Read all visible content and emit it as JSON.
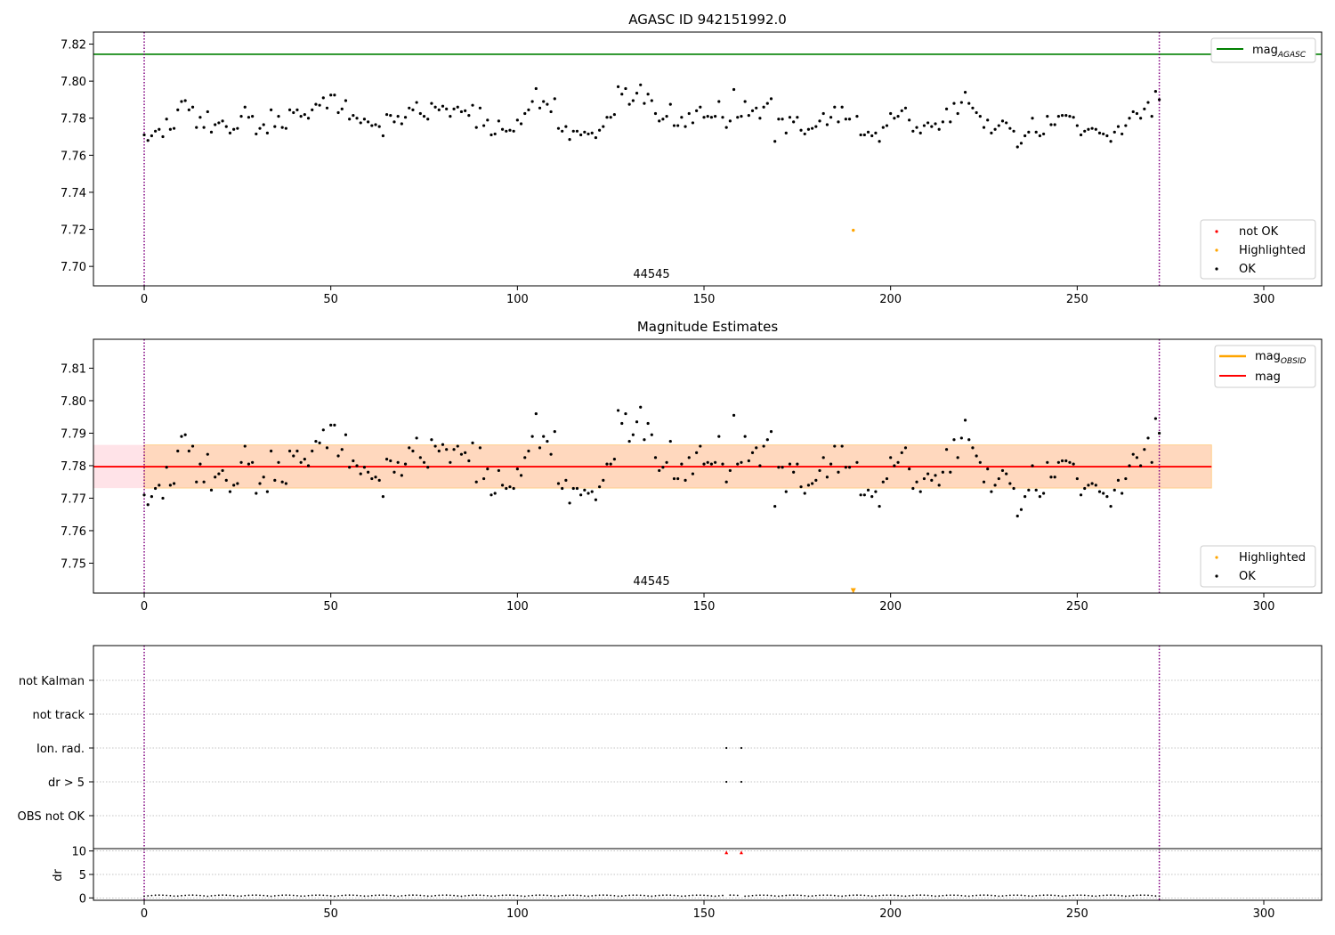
{
  "chart_data": [
    {
      "type": "scatter",
      "title": "AGASC ID 942151992.0",
      "xlim": [
        -13.6,
        315.5
      ],
      "ylim": [
        7.6895,
        7.8265
      ],
      "xticks": [
        0,
        50,
        100,
        150,
        200,
        250,
        300
      ],
      "yticks": [
        7.7,
        7.72,
        7.74,
        7.76,
        7.78,
        7.8,
        7.82
      ],
      "ytick_labels": [
        "7.70",
        "7.72",
        "7.74",
        "7.76",
        "7.78",
        "7.80",
        "7.82"
      ],
      "obsid_label": "44545",
      "obsid_boundaries": [
        0,
        272
      ],
      "mag_agasc": 7.8145,
      "highlighted_point": [
        190,
        7.7195
      ],
      "legend_top": {
        "label_main": "mag",
        "label_sub": "AGASC",
        "color": "#008000",
        "position": "upper right"
      },
      "legend_bottom": {
        "entries": [
          {
            "label": "not OK",
            "color": "#ff0000"
          },
          {
            "label": "Highlighted",
            "color": "#ffa500"
          },
          {
            "label": "OK",
            "color": "#000000"
          }
        ],
        "position": "lower right"
      },
      "grid": false
    },
    {
      "type": "scatter",
      "title": "Magnitude Estimates",
      "xlim": [
        -13.6,
        315.5
      ],
      "ylim": [
        7.7408,
        7.8189
      ],
      "xticks": [
        0,
        50,
        100,
        150,
        200,
        250,
        300
      ],
      "yticks": [
        7.75,
        7.76,
        7.77,
        7.78,
        7.79,
        7.8,
        7.81
      ],
      "ytick_labels": [
        "7.75",
        "7.76",
        "7.77",
        "7.78",
        "7.79",
        "7.80",
        "7.81"
      ],
      "obsid_label": "44545",
      "mag": 7.7797,
      "mag_band": [
        7.7731,
        7.7864
      ],
      "band_xrange": [
        -13.6,
        286
      ],
      "highlighted_point": [
        190,
        7.7415
      ],
      "legend_top": {
        "entries": [
          {
            "label_main": "mag",
            "label_sub": "OBSID",
            "color": "#ffa500"
          },
          {
            "label_main": "mag",
            "label_sub": "",
            "color": "#ff0000"
          }
        ],
        "position": "upper right"
      },
      "legend_bottom": {
        "entries": [
          {
            "label": "Highlighted",
            "color": "#ffa500"
          },
          {
            "label": "OK",
            "color": "#000000"
          }
        ],
        "position": "lower right"
      },
      "grid": false
    },
    {
      "type": "scatter",
      "title": "",
      "xlim": [
        -13.6,
        315.5
      ],
      "flag_rows": [
        "not Kalman",
        "not track",
        "Ion. rad.",
        "dr > 5",
        "OBS not OK"
      ],
      "flag_points": {
        "Ion. rad.": [
          156,
          160
        ],
        "dr > 5": [
          156,
          160
        ]
      },
      "grid": true
    },
    {
      "type": "scatter",
      "title": "",
      "ylabel": "dr",
      "xlim": [
        -13.6,
        315.5
      ],
      "ylim": [
        -0.5,
        10.5
      ],
      "xticks": [
        0,
        50,
        100,
        150,
        200,
        250,
        300
      ],
      "yticks": [
        0,
        5,
        10
      ],
      "dr_outliers": [
        [
          156,
          9.7
        ],
        [
          160,
          9.7
        ]
      ],
      "grid": true
    }
  ],
  "series_values": {
    "mag_estimates": [
      7.771,
      7.768,
      7.7705,
      7.773,
      7.774,
      7.77,
      7.7795,
      7.774,
      7.7745,
      7.7845,
      7.789,
      7.7895,
      7.7845,
      7.786,
      7.775,
      7.7805,
      7.775,
      7.7835,
      7.7725,
      7.7765,
      7.7775,
      7.7785,
      7.7755,
      7.772,
      7.774,
      7.7745,
      7.781,
      7.786,
      7.7805,
      7.781,
      7.7715,
      7.7745,
      7.7765,
      7.772,
      7.7845,
      7.7755,
      7.781,
      7.775,
      7.7745,
      7.7845,
      7.783,
      7.7845,
      7.781,
      7.782,
      7.78,
      7.7845,
      7.7875,
      7.787,
      7.791,
      7.7855,
      7.7925,
      7.7925,
      7.783,
      7.785,
      7.7895,
      7.7795,
      7.7815,
      7.78,
      7.7775,
      7.7795,
      7.778,
      7.776,
      7.7765,
      7.7755,
      7.7705,
      7.782,
      7.7815,
      7.778,
      7.781,
      7.777,
      7.7805,
      7.7855,
      7.7845,
      7.7885,
      7.7825,
      7.781,
      7.7795,
      7.788,
      7.786,
      7.7845,
      7.7865,
      7.785,
      7.781,
      7.785,
      7.786,
      7.7835,
      7.784,
      7.7815,
      7.787,
      7.775,
      7.7855,
      7.776,
      7.779,
      7.771,
      7.7715,
      7.7785,
      7.774,
      7.773,
      7.7735,
      7.773,
      7.779,
      7.777,
      7.7825,
      7.7845,
      7.789,
      7.796,
      7.7855,
      7.789,
      7.7875,
      7.7835,
      7.7905,
      7.7745,
      7.773,
      7.7755,
      7.7685,
      7.773,
      7.773,
      7.771,
      7.7725,
      7.7715,
      7.772,
      7.7695,
      7.7735,
      7.7755,
      7.7805,
      7.7805,
      7.782,
      7.797,
      7.793,
      7.796,
      7.7875,
      7.7895,
      7.7935,
      7.798,
      7.788,
      7.793,
      7.7895,
      7.7825,
      7.7785,
      7.7795,
      7.781,
      7.7875,
      7.776,
      7.776,
      7.7805,
      7.7755,
      7.7825,
      7.7775,
      7.784,
      7.786,
      7.7805,
      7.781,
      7.7805,
      7.781,
      7.789,
      7.7805,
      7.775,
      7.7785,
      7.7955,
      7.7805,
      7.781,
      7.789,
      7.7815,
      7.784,
      7.7855,
      7.78,
      7.786,
      7.788,
      7.7905,
      7.7675,
      7.7795,
      7.7795,
      7.772,
      7.7805,
      7.778,
      7.7805,
      7.7735,
      7.7715,
      7.774,
      7.7745,
      7.7755,
      7.7785,
      7.7825,
      7.7765,
      7.7805,
      7.786,
      7.778,
      7.786,
      7.7795,
      7.7795,
      7.7805,
      7.781,
      7.771,
      7.771,
      7.7725,
      7.7705,
      7.772,
      7.7675,
      7.775,
      7.776,
      7.7825,
      7.78,
      7.781,
      7.784,
      7.7855,
      7.779,
      7.773,
      7.775,
      7.772,
      7.776,
      7.7775,
      7.7755,
      7.777,
      7.774,
      7.778,
      7.785,
      7.778,
      7.788,
      7.7825,
      7.7885,
      7.794,
      7.788,
      7.7855,
      7.783,
      7.781,
      7.775,
      7.779,
      7.772,
      7.774,
      7.776,
      7.7785,
      7.7775,
      7.7745,
      7.773,
      7.7645,
      7.7665,
      7.7705,
      7.7725,
      7.78,
      7.7725,
      7.7705,
      7.7715,
      7.781,
      7.7765,
      7.7765,
      7.781,
      7.7815,
      7.7815,
      7.781,
      7.7805,
      7.776,
      7.771,
      7.773,
      7.774,
      7.7745,
      7.774,
      7.772,
      7.7715,
      7.7705,
      7.7675,
      7.7725,
      7.7755,
      7.7715,
      7.776,
      7.78,
      7.7835,
      7.7825,
      7.78,
      7.785,
      7.7885,
      7.781,
      7.7945,
      7.79
    ]
  },
  "colors": {
    "agasc_line": "#008000",
    "mag_line": "#ff0000",
    "mag_obsid": "#ffa500",
    "obsid_boundary": "#800080",
    "band_fill": "#ffc0cb",
    "band_fill_inner": "#ffd2b4"
  }
}
